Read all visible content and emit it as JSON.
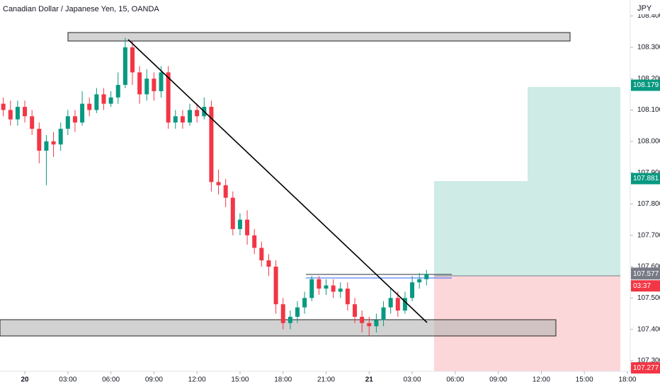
{
  "chart_data": {
    "type": "candlestick",
    "title": "Canadian Dollar / Japanese Yen, 15, OANDA",
    "y_unit": "JPY",
    "up_color": "#089981",
    "down_color": "#f23645",
    "xlim": [
      -1.73,
      42.2
    ],
    "xticks": [
      {
        "value": 0,
        "label": "20"
      },
      {
        "value": 3,
        "label": "03:00"
      },
      {
        "value": 6,
        "label": "06:00"
      },
      {
        "value": 9,
        "label": "09:00"
      },
      {
        "value": 12,
        "label": "12:00"
      },
      {
        "value": 15,
        "label": "15:00"
      },
      {
        "value": 18,
        "label": "18:00"
      },
      {
        "value": 21,
        "label": "21:00"
      },
      {
        "value": 24,
        "label": "21"
      },
      {
        "value": 27,
        "label": "03:00"
      },
      {
        "value": 30,
        "label": "06:00"
      },
      {
        "value": 33,
        "label": "09:00"
      },
      {
        "value": 36,
        "label": "12:00"
      },
      {
        "value": 39,
        "label": "15:00"
      },
      {
        "value": 42,
        "label": "18:00"
      }
    ],
    "ylim": [
      107.266,
      108.451
    ],
    "yticks": [
      {
        "value": 107.3,
        "label": "107.300"
      },
      {
        "value": 107.4,
        "label": "107.400"
      },
      {
        "value": 107.5,
        "label": "107.500"
      },
      {
        "value": 107.6,
        "label": "107.600"
      },
      {
        "value": 107.7,
        "label": "107.700"
      },
      {
        "value": 107.8,
        "label": "107.800"
      },
      {
        "value": 107.9,
        "label": "107.900"
      },
      {
        "value": 108.0,
        "label": "108.000"
      },
      {
        "value": 108.1,
        "label": "108.100"
      },
      {
        "value": 108.2,
        "label": "108.200"
      },
      {
        "value": 108.3,
        "label": "108.300"
      },
      {
        "value": 108.4,
        "label": "108.400"
      }
    ],
    "price_labels": [
      {
        "label": "108.179",
        "color": "#089981"
      },
      {
        "label": "107.881",
        "color": "#089981"
      },
      {
        "label": "107.579",
        "color": "#787b86"
      },
      {
        "label": "107.577",
        "color": "#787b86"
      },
      {
        "label": "03:37",
        "color": "#f23645"
      },
      {
        "label": "107.277",
        "color": "#f23645"
      }
    ],
    "candles": {
      "x": [
        -1.5,
        -1,
        -0.5,
        0,
        0.5,
        1,
        1.5,
        2,
        2.5,
        3,
        3.5,
        4,
        4.5,
        5,
        5.5,
        6,
        6.5,
        7,
        7.5,
        8,
        8.5,
        9,
        9.5,
        10,
        10.5,
        11,
        11.5,
        12,
        12.5,
        13,
        13.5,
        14,
        14.5,
        15,
        15.5,
        16,
        16.5,
        17,
        17.5,
        18,
        18.5,
        19,
        19.5,
        20,
        20.5,
        21,
        21.5,
        22,
        22.5,
        23,
        23.5,
        24,
        24.5,
        25,
        25.5,
        26,
        26.5,
        27,
        27.5,
        28
      ],
      "open": [
        108.12,
        108.1,
        108.07,
        108.11,
        108.08,
        108.04,
        107.97,
        108.0,
        107.99,
        108.04,
        108.08,
        108.06,
        108.12,
        108.1,
        108.15,
        108.12,
        108.14,
        108.18,
        108.3,
        108.22,
        108.15,
        108.2,
        108.16,
        108.22,
        108.06,
        108.08,
        108.06,
        108.1,
        108.08,
        108.11,
        107.87,
        107.86,
        107.82,
        107.72,
        107.75,
        107.7,
        107.66,
        107.62,
        107.6,
        107.48,
        107.42,
        107.44,
        107.47,
        107.5,
        107.56,
        107.53,
        107.54,
        107.52,
        107.53,
        107.48,
        107.44,
        107.42,
        107.41,
        107.43,
        107.47,
        107.5,
        107.46,
        107.5,
        107.55,
        107.56
      ],
      "high": [
        108.14,
        108.13,
        108.13,
        108.13,
        108.1,
        108.06,
        108.02,
        108.03,
        108.06,
        108.1,
        108.1,
        108.16,
        108.14,
        108.17,
        108.17,
        108.16,
        108.22,
        108.33,
        108.32,
        108.24,
        108.23,
        108.22,
        108.24,
        108.24,
        108.1,
        108.1,
        108.12,
        108.12,
        108.14,
        108.13,
        107.91,
        107.88,
        107.84,
        107.77,
        107.78,
        107.72,
        107.68,
        107.64,
        107.62,
        107.5,
        107.46,
        107.49,
        107.52,
        107.57,
        107.57,
        107.56,
        107.56,
        107.55,
        107.55,
        107.5,
        107.46,
        107.44,
        107.45,
        107.49,
        107.53,
        107.52,
        107.52,
        107.57,
        107.58,
        107.59
      ],
      "low": [
        108.08,
        108.05,
        108.05,
        108.06,
        108.02,
        107.93,
        107.86,
        107.95,
        107.97,
        108.02,
        108.03,
        108.05,
        108.08,
        108.09,
        108.1,
        108.11,
        108.12,
        108.17,
        108.18,
        108.12,
        108.13,
        108.13,
        108.14,
        108.04,
        108.04,
        108.04,
        108.05,
        108.06,
        108.07,
        107.84,
        107.83,
        107.79,
        107.7,
        107.7,
        107.67,
        107.64,
        107.6,
        107.57,
        107.45,
        107.4,
        107.4,
        107.42,
        107.45,
        107.49,
        107.51,
        107.51,
        107.5,
        107.5,
        107.46,
        107.42,
        107.39,
        107.38,
        107.39,
        107.41,
        107.45,
        107.44,
        107.45,
        107.49,
        107.53,
        107.54
      ],
      "close": [
        108.1,
        108.07,
        108.11,
        108.08,
        108.04,
        107.97,
        108.0,
        107.99,
        108.04,
        108.08,
        108.06,
        108.12,
        108.1,
        108.15,
        108.12,
        108.14,
        108.18,
        108.3,
        108.22,
        108.15,
        108.2,
        108.16,
        108.22,
        108.06,
        108.08,
        108.06,
        108.1,
        108.08,
        108.11,
        107.87,
        107.86,
        107.82,
        107.72,
        107.75,
        107.7,
        107.66,
        107.62,
        107.6,
        107.48,
        107.42,
        107.44,
        107.47,
        107.5,
        107.56,
        107.53,
        107.54,
        107.52,
        107.53,
        107.48,
        107.44,
        107.42,
        107.41,
        107.43,
        107.47,
        107.5,
        107.46,
        107.5,
        107.55,
        107.56,
        107.577
      ]
    }
  }
}
